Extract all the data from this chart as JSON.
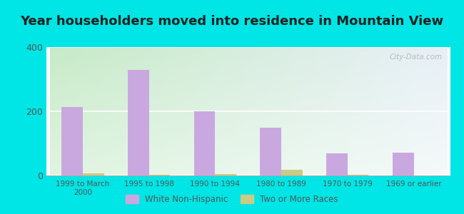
{
  "title": "Year householders moved into residence in Mountain View",
  "categories": [
    "1999 to March\n2000",
    "1995 to 1998",
    "1990 to 1994",
    "1980 to 1989",
    "1970 to 1979",
    "1969 or earlier"
  ],
  "white_non_hispanic": [
    213,
    328,
    200,
    150,
    70,
    72
  ],
  "two_or_more_races": [
    7,
    3,
    5,
    18,
    2,
    0
  ],
  "bar_color_white": "#c9a8e0",
  "bar_color_two": "#c8cc85",
  "background_outer": "#00e5e5",
  "background_plot_topleft": "#c8e8c8",
  "background_plot_topright": "#e8f0f8",
  "background_plot_bottom": "#f0f8f0",
  "ylim": [
    0,
    400
  ],
  "yticks": [
    0,
    200,
    400
  ],
  "title_fontsize": 13,
  "watermark": "City-Data.com",
  "legend_label_white": "White Non-Hispanic",
  "legend_label_two": "Two or More Races",
  "bar_width": 0.32,
  "figwidth": 6.5,
  "figheight": 3.0
}
